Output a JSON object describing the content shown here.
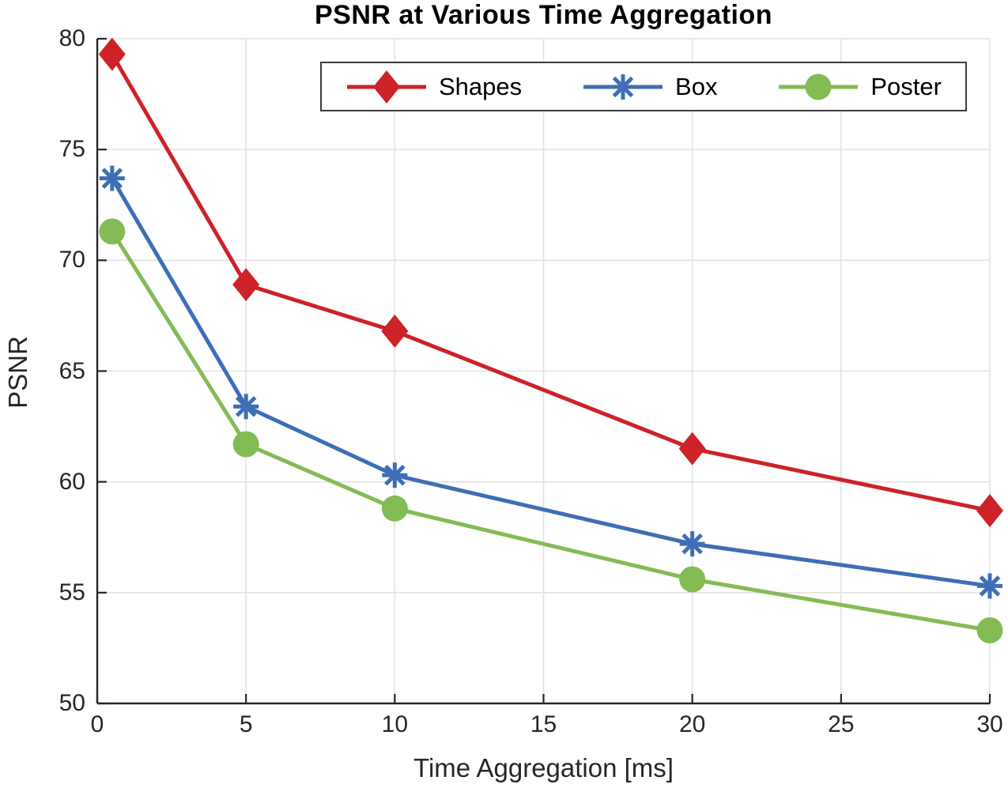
{
  "chart_data": {
    "type": "line",
    "title": "PSNR at Various Time Aggregation",
    "xlabel": "Time Aggregation [ms]",
    "ylabel": "PSNR",
    "xlim": [
      0,
      30
    ],
    "ylim": [
      50,
      80
    ],
    "x_ticks": [
      0,
      5,
      10,
      15,
      20,
      25,
      30
    ],
    "y_ticks": [
      50,
      55,
      60,
      65,
      70,
      75,
      80
    ],
    "grid": true,
    "legend_position": "north-inside-horizontal",
    "x": [
      0.5,
      5,
      10,
      20,
      30
    ],
    "series": [
      {
        "name": "Shapes",
        "marker": "diamond",
        "color": "#cc2228",
        "values": [
          79.3,
          68.9,
          66.8,
          61.5,
          58.7
        ]
      },
      {
        "name": "Box",
        "marker": "asterisk",
        "color": "#3d6eb6",
        "values": [
          73.7,
          63.4,
          60.3,
          57.2,
          55.3
        ]
      },
      {
        "name": "Poster",
        "marker": "circle",
        "color": "#83bb55",
        "values": [
          71.3,
          61.7,
          58.8,
          55.6,
          53.3
        ]
      }
    ],
    "colors": {
      "background": "#ffffff",
      "grid": "#e2e2e2",
      "axis": "#262626",
      "tick_label": "#262626",
      "legend_border": "#3c3c3c",
      "title": "#000000"
    }
  }
}
